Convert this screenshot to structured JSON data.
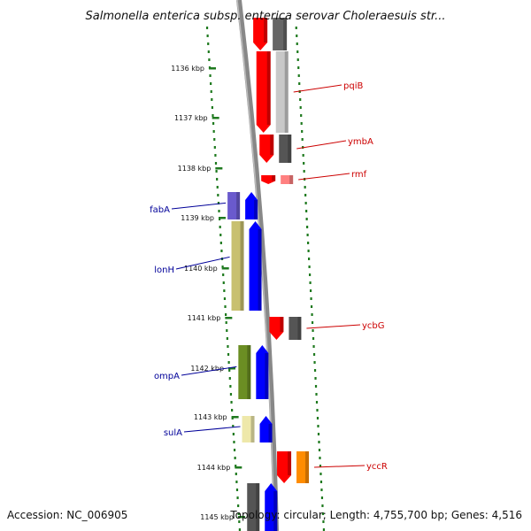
{
  "title": "Salmonella enterica subsp. enterica serovar Choleraesuis str...",
  "footer": {
    "accession": "Accession: NC_006905",
    "summary": "Topology: circular; Length: 4,755,700 bp; Genes: 4,516"
  },
  "colors": {
    "backbone": "#888888",
    "tick": "#1f7a1f",
    "forward_label": "#cc0000",
    "reverse_label": "#000099"
  },
  "scale": {
    "unit": "kbp",
    "ticks": [
      {
        "label": "1136 kbp"
      },
      {
        "label": "1137 kbp"
      },
      {
        "label": "1138 kbp"
      },
      {
        "label": "1139 kbp"
      },
      {
        "label": "1140 kbp"
      },
      {
        "label": "1141 kbp"
      },
      {
        "label": "1142 kbp"
      },
      {
        "label": "1143 kbp"
      },
      {
        "label": "1144 kbp"
      },
      {
        "label": "1145 kbp"
      }
    ]
  },
  "genes": [
    {
      "name": "pqiB",
      "strand": "+",
      "color": "#ff0000",
      "cog_color": "#c8c8c8"
    },
    {
      "name": "ymbA",
      "strand": "+",
      "color": "#ff0000",
      "cog_color": "#555555"
    },
    {
      "name": "rmf",
      "strand": "+",
      "color": "#ff0000",
      "cog_color": "#ff8080"
    },
    {
      "name": "fabA",
      "strand": "-",
      "color": "#0000ff",
      "cog_color": "#6a5acd"
    },
    {
      "name": "lonH",
      "strand": "-",
      "color": "#0000ff",
      "cog_color": "#c8c070"
    },
    {
      "name": "ycbG",
      "strand": "+",
      "color": "#ff0000",
      "cog_color": "#555555"
    },
    {
      "name": "ompA",
      "strand": "-",
      "color": "#0000ff",
      "cog_color": "#6b8e23"
    },
    {
      "name": "sulA",
      "strand": "-",
      "color": "#0000ff",
      "cog_color": "#eee8aa"
    },
    {
      "name": "yccR",
      "strand": "+",
      "color": "#ff0000",
      "cog_color": "#ff8c00"
    }
  ]
}
